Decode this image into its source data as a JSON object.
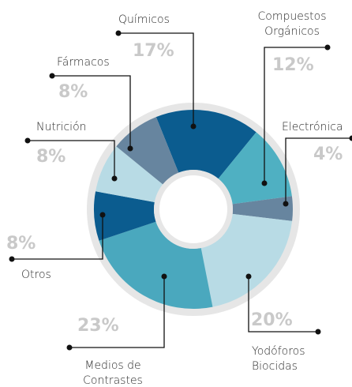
{
  "chart_data": {
    "type": "donut",
    "categories": [
      "Químicos",
      "Compuestos Orgánicos",
      "Electrónica",
      "Yodóforos Biocidas",
      "Medios de Contrastes",
      "Otros",
      "Nutrición",
      "Fármacos"
    ],
    "values": [
      17,
      12,
      4,
      20,
      23,
      8,
      8,
      8
    ],
    "value_labels": [
      "17%",
      "12%",
      "4%",
      "20%",
      "23%",
      "8%",
      "8%",
      "8%"
    ],
    "colors": [
      "#0b5c8f",
      "#4fb0c2",
      "#67859f",
      "#b8dbe5",
      "#4aa8be",
      "#0b5c8f",
      "#b8dbe5",
      "#67859f"
    ]
  }
}
